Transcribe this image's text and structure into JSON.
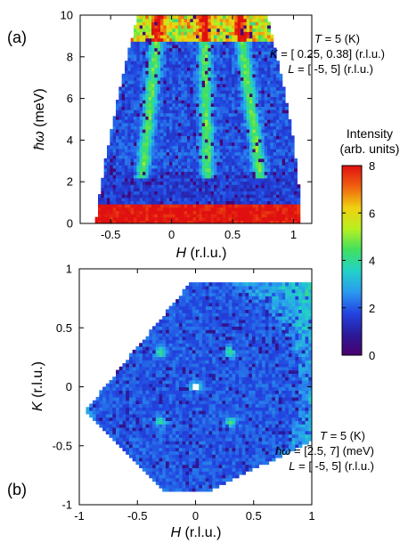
{
  "chart_data": [
    {
      "type": "heatmap",
      "panel_label": "(a)",
      "xlabel_var": "H",
      "xlabel_unit": " (r.l.u.)",
      "ylabel_var": "ħω",
      "ylabel_unit": " (meV)",
      "xlim": [
        -0.75,
        1.15
      ],
      "ylim": [
        0,
        10
      ],
      "xticks": [
        -0.5,
        0,
        0.5,
        1
      ],
      "xtick_labels": [
        "-0.5",
        "0",
        "0.5",
        "1"
      ],
      "yticks": [
        0,
        2,
        4,
        6,
        8,
        10
      ],
      "ytick_labels": [
        "0",
        "2",
        "4",
        "6",
        "8",
        "10"
      ],
      "annotation_lines": [
        {
          "var": "T",
          "text": " = 5 (K)"
        },
        {
          "var": "K",
          "text": " = [ 0.25, 0.38] (r.l.u.)"
        },
        {
          "var": "L",
          "text": " = [ -5, 5] (r.l.u.)"
        }
      ],
      "coverage_bottom_h": [
        -0.62,
        1.06
      ],
      "coverage_top_h": [
        -0.28,
        0.78
      ],
      "elastic_line_mev": 0.9,
      "dispersive_modes": [
        {
          "h0": -0.28,
          "h_top": -0.1
        },
        {
          "h0": 0.3,
          "h_top": 0.27
        },
        {
          "h0": 0.78,
          "h_top": 0.55
        }
      ],
      "gap_mev": 2.5
    },
    {
      "type": "heatmap",
      "panel_label": "(b)",
      "xlabel_var": "H",
      "xlabel_unit": " (r.l.u.)",
      "ylabel_var": "K",
      "ylabel_unit": " (r.l.u.)",
      "xlim": [
        -1,
        1
      ],
      "ylim": [
        -1,
        1
      ],
      "xticks": [
        -1,
        -0.5,
        0,
        0.5,
        1
      ],
      "xtick_labels": [
        "-1",
        "-0.5",
        "0",
        "0.5",
        "1"
      ],
      "yticks": [
        -1,
        -0.5,
        0,
        0.5,
        1
      ],
      "ytick_labels": [
        "-1",
        "-0.5",
        "0",
        "0.5",
        "1"
      ],
      "annotation_lines": [
        {
          "var": "T",
          "text": " = 5 (K)"
        },
        {
          "var": "ħω",
          "text": " = [2.5, 7] (meV)"
        },
        {
          "var": "L",
          "text": " = [ -5, 5] (r.l.u.)"
        }
      ],
      "coverage_polygon_hk": [
        [
          -0.95,
          -0.2
        ],
        [
          -0.05,
          0.88
        ],
        [
          1.0,
          0.88
        ],
        [
          1.02,
          -0.45
        ],
        [
          0.12,
          -0.88
        ],
        [
          -0.28,
          -0.88
        ],
        [
          -0.95,
          -0.2
        ]
      ],
      "peaks_hk": [
        [
          -0.3,
          0.3
        ],
        [
          0.3,
          0.3
        ],
        [
          -0.3,
          -0.3
        ],
        [
          0.3,
          -0.3
        ],
        [
          0.0,
          0.0
        ]
      ]
    }
  ],
  "colorbar": {
    "title_line1": "Intensity",
    "title_line2": "(arb. units)",
    "min": 0,
    "max": 8,
    "ticks": [
      0,
      2,
      4,
      6,
      8
    ],
    "tick_labels": [
      "0",
      "2",
      "4",
      "6",
      "8"
    ],
    "colors": [
      "#4b006e",
      "#2a1a9a",
      "#2244e0",
      "#2a9af0",
      "#22d2c8",
      "#40e060",
      "#b8f020",
      "#f0d010",
      "#f06010",
      "#e01010"
    ]
  }
}
